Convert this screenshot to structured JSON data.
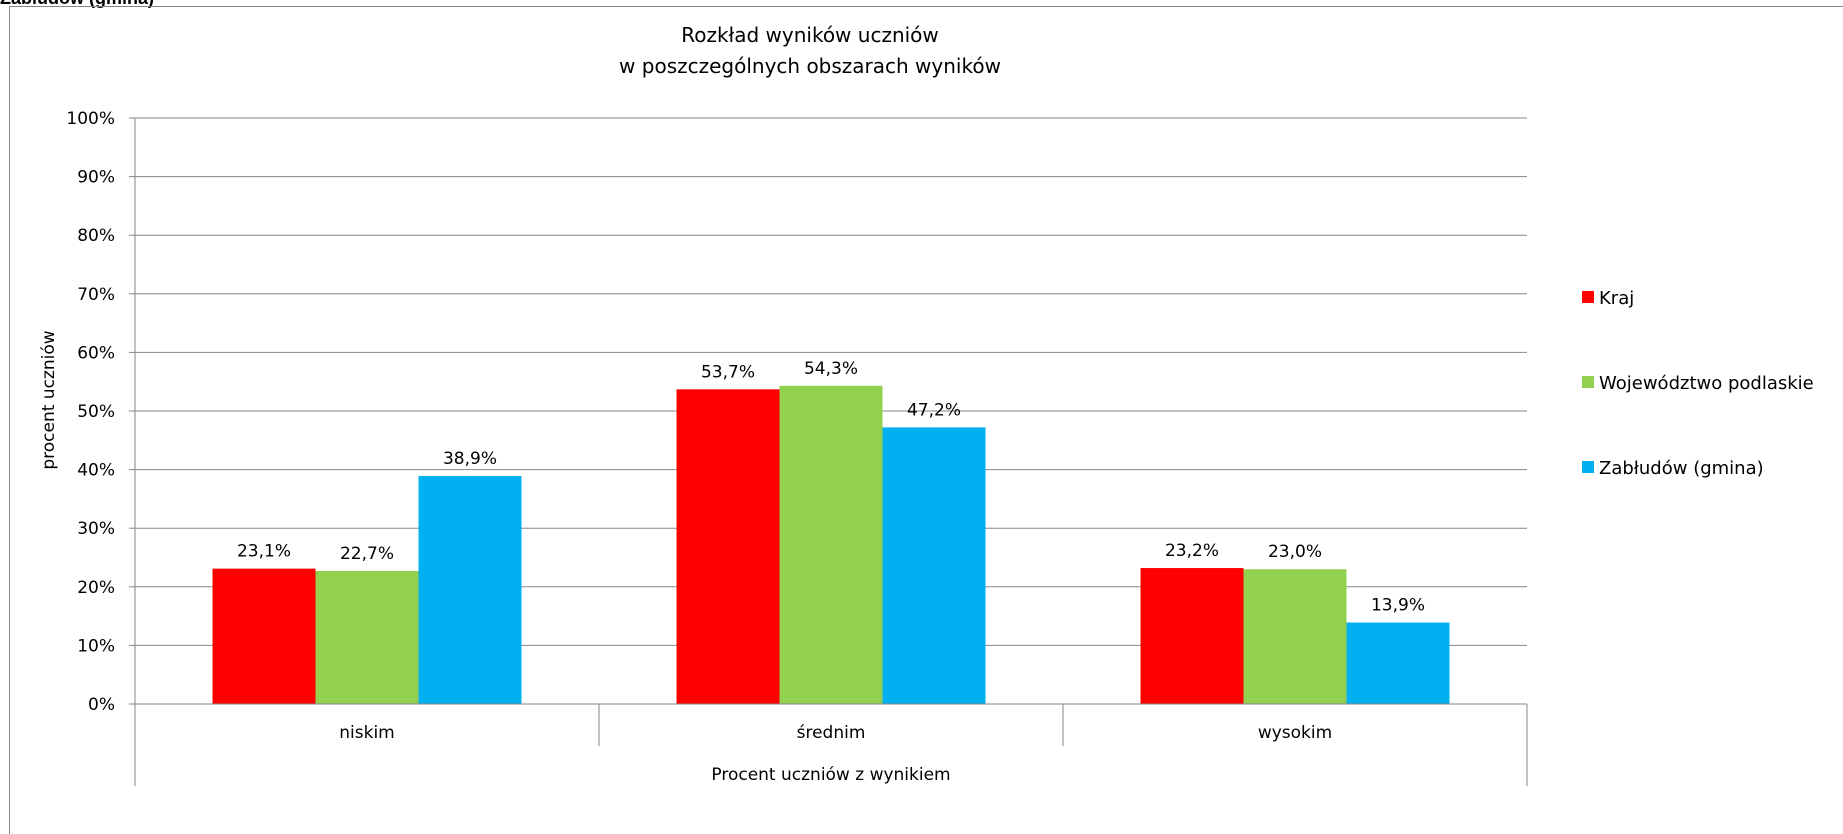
{
  "page": {
    "top_label": "Zabłudów (gmina)"
  },
  "chart_data": {
    "type": "bar",
    "title": [
      "Rozkład wyników uczniów",
      "w poszczególnych obszarach wyników"
    ],
    "xlabel": "Procent uczniów z wynikiem",
    "ylabel": "procent uczniów",
    "categories": [
      "niskim",
      "średnim",
      "wysokim"
    ],
    "series": [
      {
        "name": "Kraj",
        "color": "#ff0000",
        "values": [
          23.1,
          53.7,
          23.2
        ],
        "labels": [
          "23,1%",
          "53,7%",
          "23,2%"
        ]
      },
      {
        "name": "Województwo podlaskie",
        "color": "#92d050",
        "values": [
          22.7,
          54.3,
          23.0
        ],
        "labels": [
          "22,7%",
          "54,3%",
          "23,0%"
        ]
      },
      {
        "name": "Zabłudów (gmina)",
        "color": "#00b0f0",
        "values": [
          38.9,
          47.2,
          13.9
        ],
        "labels": [
          "38,9%",
          "47,2%",
          "13,9%"
        ]
      }
    ],
    "ylim": [
      0,
      100
    ],
    "yticks": [
      "0%",
      "10%",
      "20%",
      "30%",
      "40%",
      "50%",
      "60%",
      "70%",
      "80%",
      "90%",
      "100%"
    ],
    "grid": true,
    "legend_position": "right"
  }
}
